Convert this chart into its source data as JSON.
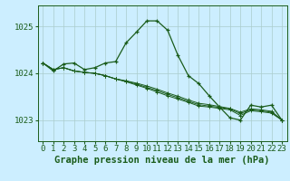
{
  "background_color": "#cceeff",
  "grid_color": "#aacccc",
  "line_color": "#1a5c1a",
  "xlabel": "Graphe pression niveau de la mer (hPa)",
  "xlabel_fontsize": 7.5,
  "tick_fontsize": 6.5,
  "ytick_labels": [
    1023,
    1024,
    1025
  ],
  "ylim": [
    1022.55,
    1025.45
  ],
  "xlim": [
    -0.5,
    23.5
  ],
  "xticks": [
    0,
    1,
    2,
    3,
    4,
    5,
    6,
    7,
    8,
    9,
    10,
    11,
    12,
    13,
    14,
    15,
    16,
    17,
    18,
    19,
    20,
    21,
    22,
    23
  ],
  "series": [
    [
      1024.22,
      1024.05,
      1024.2,
      1024.22,
      1024.08,
      1024.12,
      1024.22,
      1024.25,
      1024.65,
      1024.88,
      1025.12,
      1025.12,
      1024.92,
      1024.38,
      1023.95,
      1023.78,
      1023.52,
      1023.28,
      1023.05,
      1023.0,
      1023.32,
      1023.28,
      1023.32,
      1023.0
    ],
    [
      1024.22,
      1024.08,
      1024.12,
      1024.05,
      1024.02,
      1024.0,
      1023.95,
      1023.88,
      1023.82,
      1023.75,
      1023.68,
      1023.6,
      1023.52,
      1023.45,
      1023.38,
      1023.3,
      1023.28,
      1023.25,
      1023.22,
      1023.1,
      1023.2,
      1023.18,
      1023.15,
      1023.0
    ],
    [
      1024.22,
      1024.08,
      1024.12,
      1024.05,
      1024.02,
      1024.0,
      1023.95,
      1023.88,
      1023.83,
      1023.77,
      1023.7,
      1023.63,
      1023.55,
      1023.48,
      1023.4,
      1023.33,
      1023.3,
      1023.27,
      1023.24,
      1023.14,
      1023.22,
      1023.2,
      1023.17,
      1023.0
    ],
    [
      1024.22,
      1024.08,
      1024.12,
      1024.05,
      1024.02,
      1024.0,
      1023.95,
      1023.88,
      1023.84,
      1023.79,
      1023.73,
      1023.66,
      1023.58,
      1023.51,
      1023.43,
      1023.36,
      1023.33,
      1023.29,
      1023.25,
      1023.17,
      1023.24,
      1023.22,
      1023.19,
      1023.0
    ]
  ]
}
